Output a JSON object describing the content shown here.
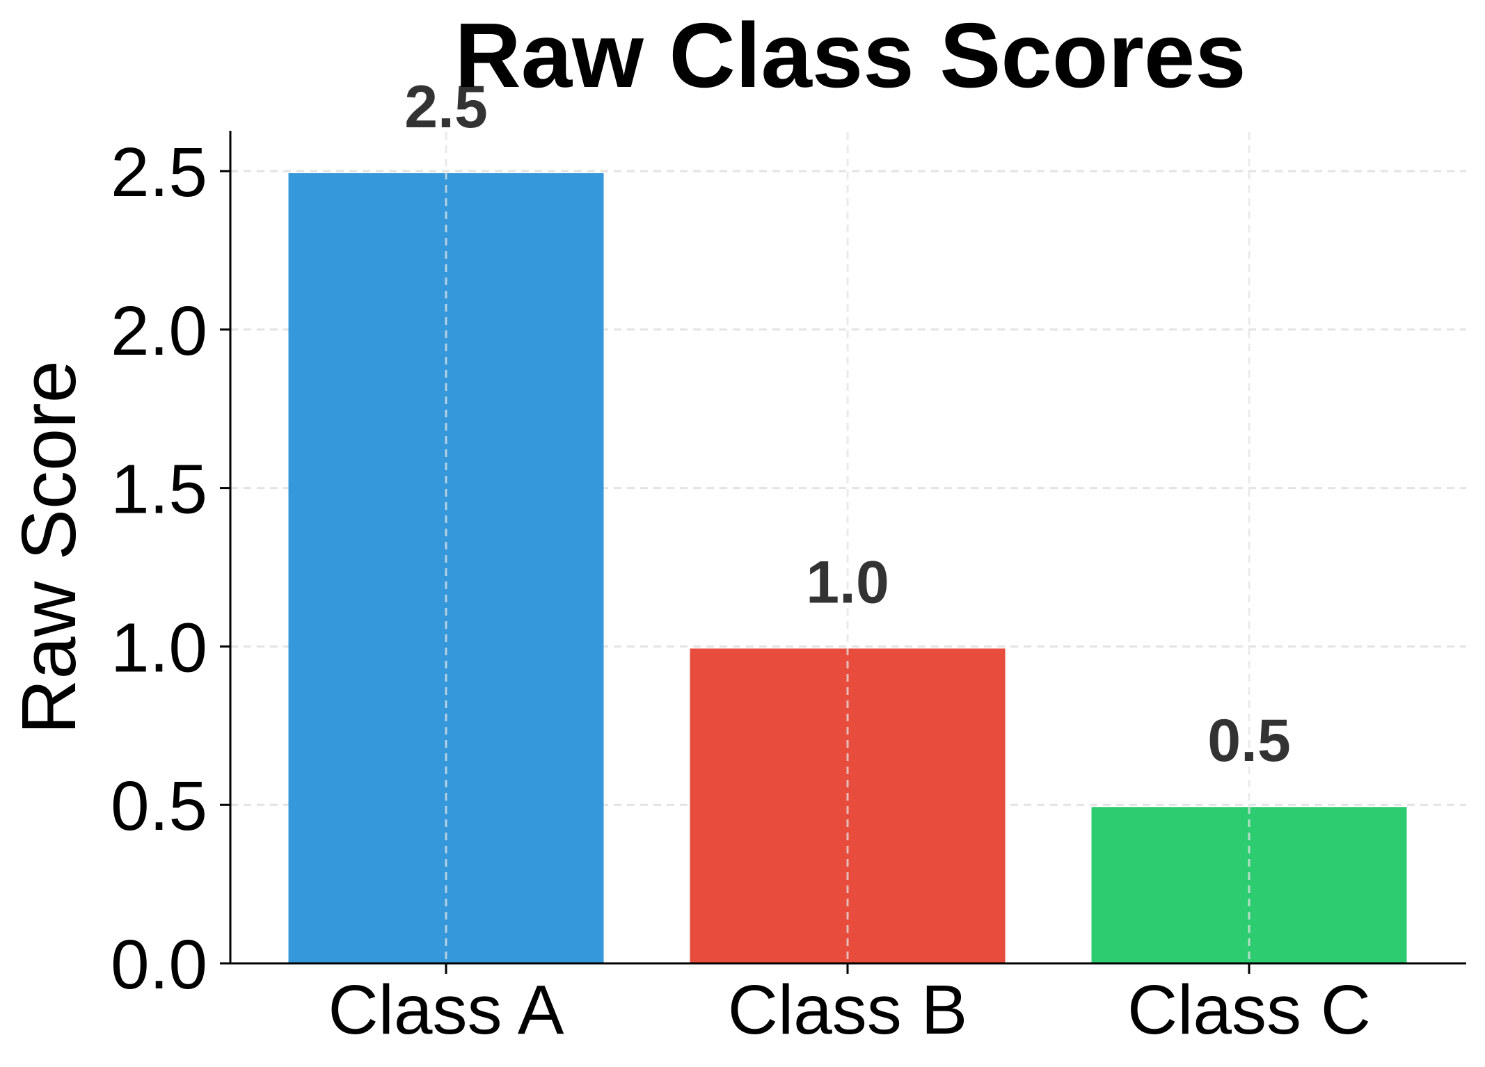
{
  "chart_data": {
    "type": "bar",
    "title": "Raw Class Scores",
    "xlabel": "",
    "ylabel": "Raw Score",
    "categories": [
      "Class A",
      "Class B",
      "Class C"
    ],
    "values": [
      2.5,
      1.0,
      0.5
    ],
    "value_labels": [
      "2.5",
      "1.0",
      "0.5"
    ],
    "colors": [
      "#3498db",
      "#e74c3c",
      "#2ecc71"
    ],
    "ylim": [
      0,
      2.63
    ],
    "yticks": [
      0.0,
      0.5,
      1.0,
      1.5,
      2.0,
      2.5
    ],
    "ytick_labels": [
      "0.0",
      "0.5",
      "1.0",
      "1.5",
      "2.0",
      "2.5"
    ],
    "grid": true,
    "grid_style": "dashed",
    "legend": null,
    "spines": [
      "left",
      "bottom"
    ]
  },
  "style": {
    "grid_color": "#e3e3e3",
    "value_label_color": "#333333",
    "axis_color": "#000000"
  }
}
